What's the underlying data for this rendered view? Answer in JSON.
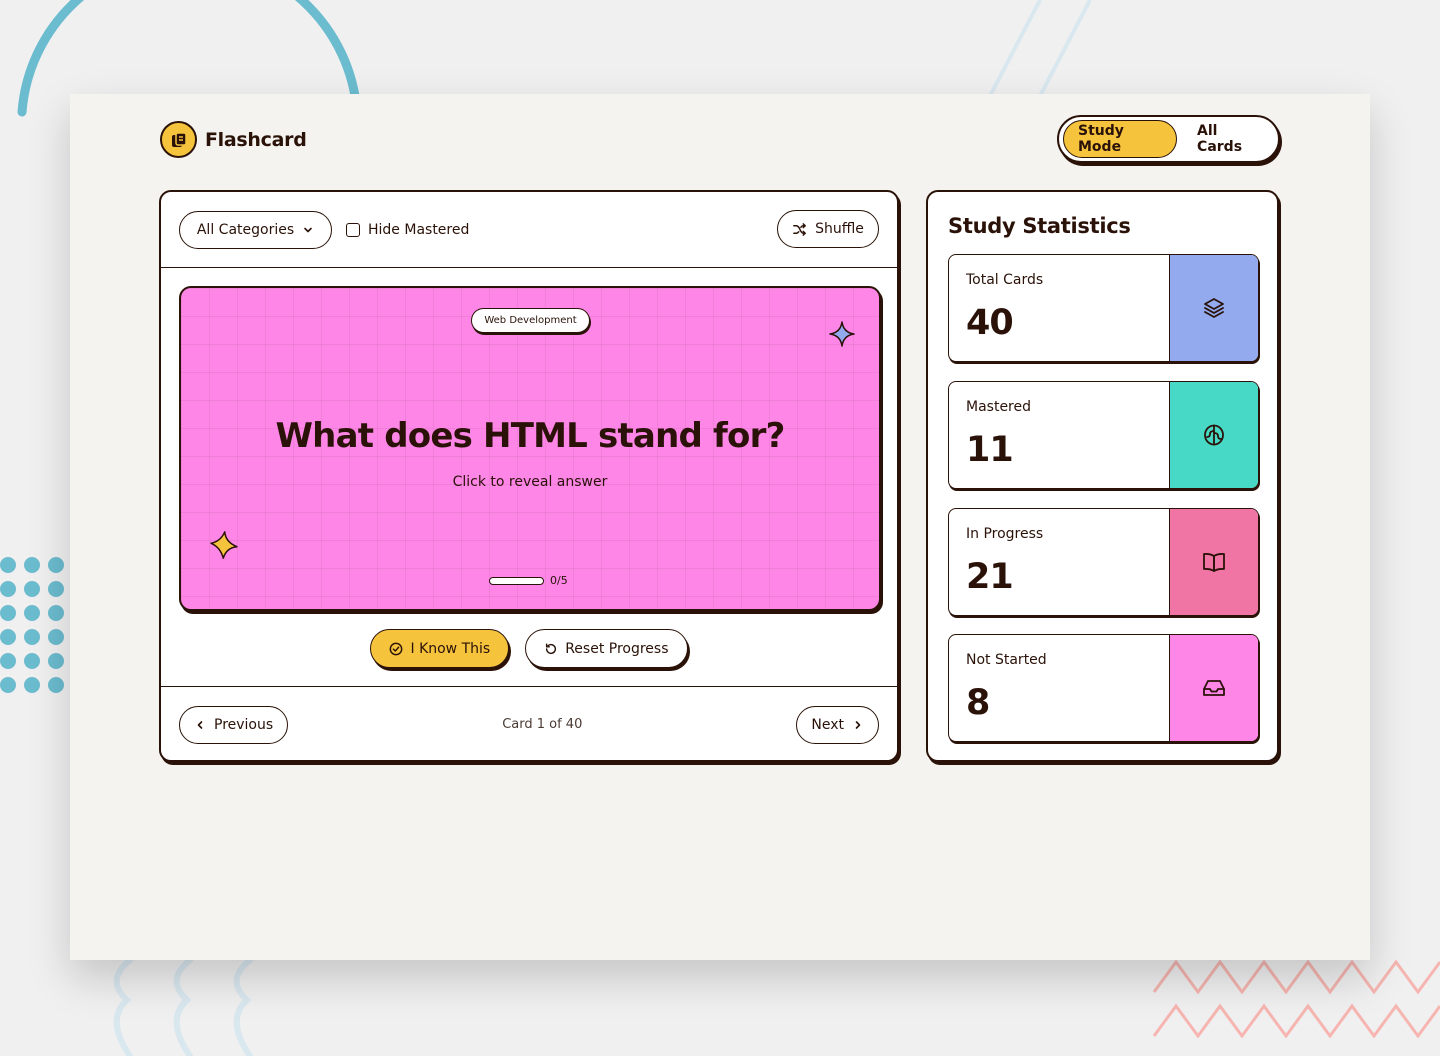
{
  "app": {
    "name": "Flashcard"
  },
  "header": {
    "modes": [
      {
        "label": "Study Mode",
        "active": true
      },
      {
        "label": "All Cards",
        "active": false
      }
    ]
  },
  "toolbar": {
    "category_select": "All Categories",
    "hide_mastered_label": "Hide Mastered",
    "hide_mastered_checked": false,
    "shuffle_label": "Shuffle"
  },
  "card": {
    "category": "Web Development",
    "question": "What does HTML stand for?",
    "hint": "Click to reveal answer",
    "progress_text": "0/5",
    "progress_fraction": 0,
    "background_color": "#fd86e6"
  },
  "actions": {
    "know_label": "I Know This",
    "reset_label": "Reset Progress"
  },
  "navigation": {
    "previous_label": "Previous",
    "next_label": "Next",
    "counter": "Card 1 of 40"
  },
  "stats": {
    "title": "Study Statistics",
    "items": [
      {
        "label": "Total Cards",
        "value": "40",
        "icon": "layers-icon",
        "color": "#93aaee"
      },
      {
        "label": "Mastered",
        "value": "11",
        "icon": "brain-icon",
        "color": "#47d9c6"
      },
      {
        "label": "In Progress",
        "value": "21",
        "icon": "book-icon",
        "color": "#f074a4"
      },
      {
        "label": "Not Started",
        "value": "8",
        "icon": "inbox-icon",
        "color": "#fd86e6"
      }
    ]
  },
  "colors": {
    "accent": "#f6c33d",
    "ink": "#2a1208",
    "window_bg": "#f5f3f0"
  }
}
